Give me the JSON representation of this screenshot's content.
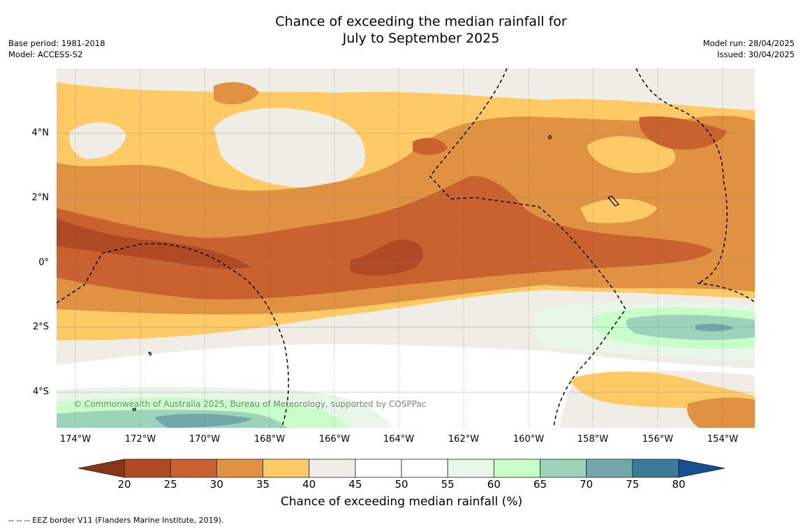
{
  "title_line1": "Chance of exceeding the median rainfall for",
  "title_line2": "July to September 2025",
  "meta_left": {
    "line1": "Base period: 1981-2018",
    "line2": "Model: ACCESS-S2"
  },
  "meta_right": {
    "line1": "Model run: 28/04/2025",
    "line2": "Issued: 30/04/2025"
  },
  "map": {
    "lat_labels": [
      "4°N",
      "2°N",
      "0°",
      "2°S",
      "4°S"
    ],
    "lon_labels": [
      "174°W",
      "172°W",
      "170°W",
      "168°W",
      "166°W",
      "164°W",
      "162°W",
      "160°W",
      "158°W",
      "156°W",
      "154°W"
    ],
    "copyright": "© Commonwealth of Australia 2025, Bureau of Meteorology, supported by COSPPac"
  },
  "colorbar": {
    "ticks": [
      "20",
      "25",
      "30",
      "35",
      "40",
      "45",
      "50",
      "55",
      "60",
      "65",
      "70",
      "75",
      "80"
    ],
    "colors": [
      "#b04a24",
      "#c9622f",
      "#e09142",
      "#fdca66",
      "#f0ece6",
      "#ffffff",
      "#ffffff",
      "#e9f5e8",
      "#c8fcc8",
      "#9dd3bb",
      "#72a6a9",
      "#3c7a9a"
    ],
    "under_color": "#8a3517",
    "over_color": "#154f8d",
    "label": "Chance of exceeding median rainfall (%)"
  },
  "footer": "--  --  -- EEZ border V11 (Flanders Marine Institute, 2019)."
}
